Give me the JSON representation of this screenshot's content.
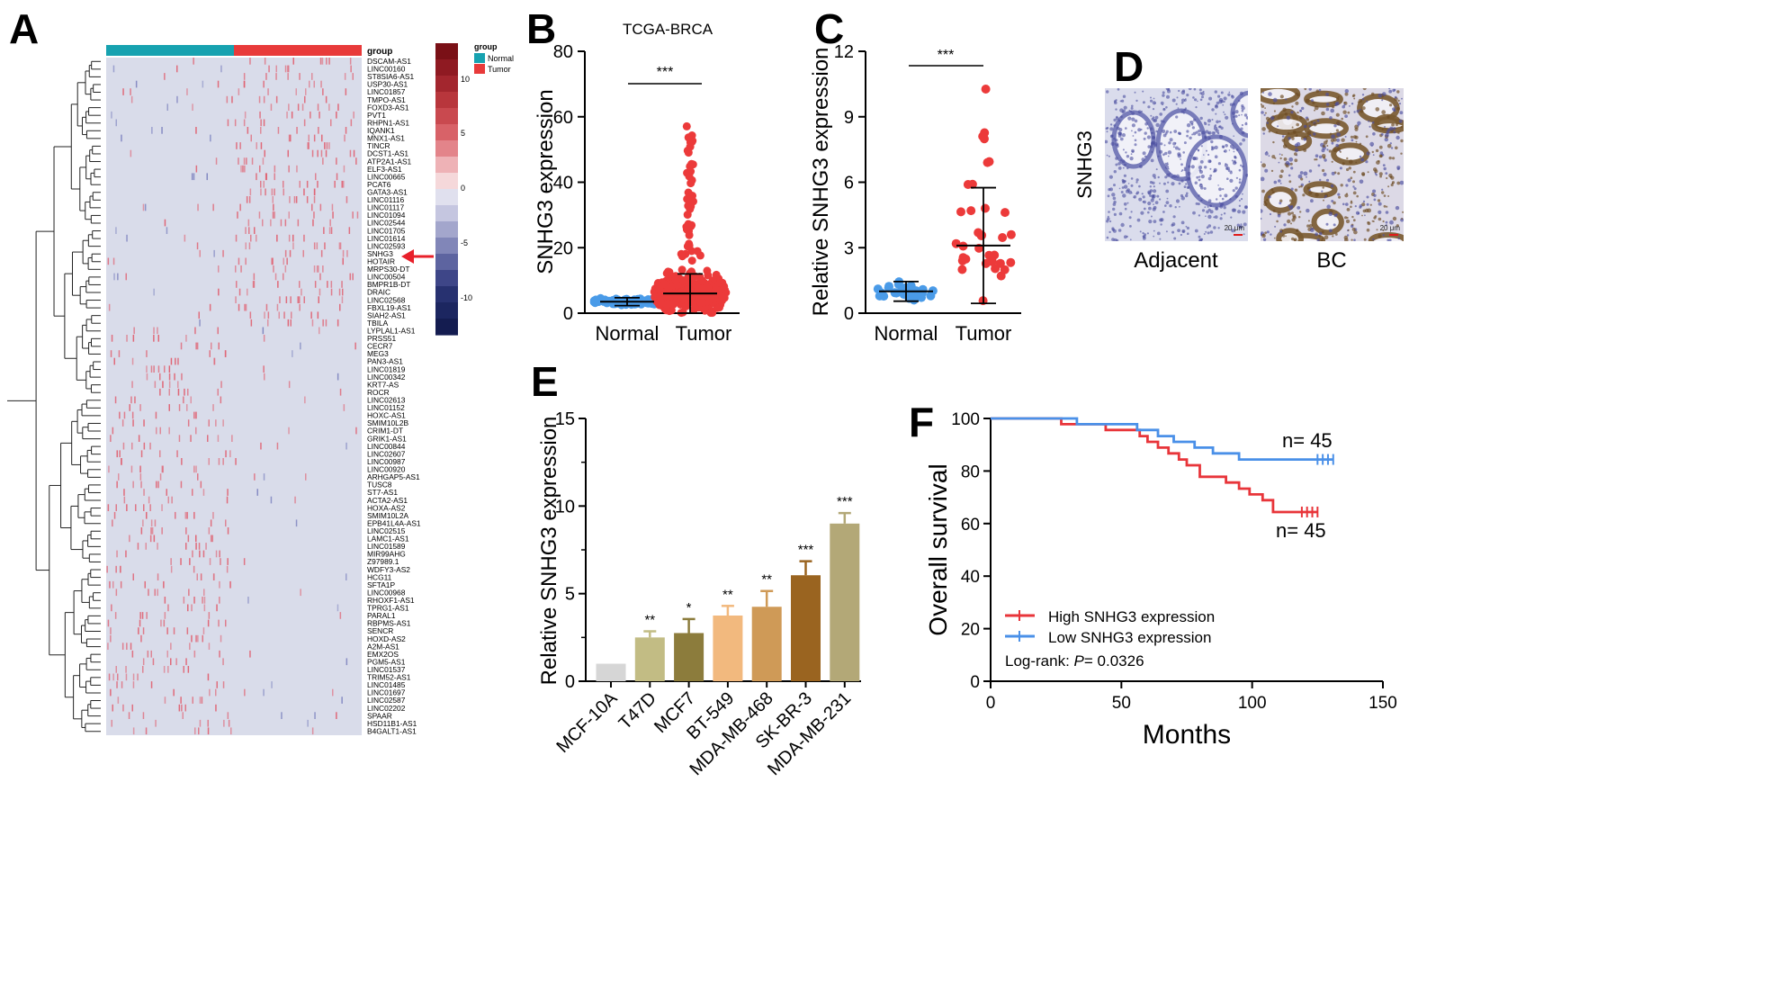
{
  "panel_letters": {
    "A": "A",
    "B": "B",
    "C": "C",
    "D": "D",
    "E": "E",
    "F": "F"
  },
  "colors": {
    "normal": "#17a2b0",
    "tumor": "#e83a3a",
    "heat_bg": "#d9dcea",
    "heat_pos": "#e06070",
    "heat_neg": "#7f85c0",
    "cell_lines": [
      "#d6d6d6",
      "#c2bc84",
      "#8c7c3c",
      "#f2b97e",
      "#cf9a57",
      "#9a6420",
      "#b3a877"
    ],
    "high": "#e8353a",
    "low": "#4a90e8"
  },
  "chart_data": [
    {
      "panel": "A",
      "type": "heatmap",
      "group_label": "group",
      "groups": [
        "Normal",
        "Tumor"
      ],
      "legend_title": "group",
      "legend_ticks": [
        "10",
        "5",
        "0",
        "-5",
        "-10"
      ],
      "highlight": "SNHG3",
      "genes": [
        "DSCAM-AS1",
        "LINC00160",
        "ST8SIA6-AS1",
        "USP30-AS1",
        "LINC01857",
        "TMPO-AS1",
        "FOXD3-AS1",
        "PVT1",
        "RHPN1-AS1",
        "IQANK1",
        "MNX1-AS1",
        "TINCR",
        "DCST1-AS1",
        "ATP2A1-AS1",
        "ELF3-AS1",
        "LINC00665",
        "PCAT6",
        "GATA3-AS1",
        "LINC01116",
        "LINC01117",
        "LINC01094",
        "LINC02544",
        "LINC01705",
        "LINC01614",
        "LINC02593",
        "SNHG3",
        "HOTAIR",
        "MRPS30-DT",
        "LINC00504",
        "BMPR1B-DT",
        "DRAIC",
        "LINC02568",
        "FBXL19-AS1",
        "SIAH2-AS1",
        "TBILA",
        "LYPLAL1-AS1",
        "PRSS51",
        "CECR7",
        "MEG3",
        "PAN3-AS1",
        "LINC01819",
        "LINC00342",
        "KRT7-AS",
        "ROCR",
        "LINC02613",
        "LINC01152",
        "HOXC-AS1",
        "SMIM10L2B",
        "CRIM1-DT",
        "GRIK1-AS1",
        "LINC00844",
        "LINC02607",
        "LINC00987",
        "LINC00920",
        "ARHGAP5-AS1",
        "TUSC8",
        "ST7-AS1",
        "ACTA2-AS1",
        "HOXA-AS2",
        "SMIM10L2A",
        "EPB41L4A-AS1",
        "LINC02515",
        "LAMC1-AS1",
        "LINC01589",
        "MIR99AHG",
        "Z97989.1",
        "WDFY3-AS2",
        "HCG11",
        "SFTA1P",
        "LINC00968",
        "RHOXF1-AS1",
        "TPRG1-AS1",
        "PARAL1",
        "RBPMS-AS1",
        "SENCR",
        "HOXD-AS2",
        "A2M-AS1",
        "EMX2OS",
        "PGM5-AS1",
        "LINC01537",
        "TRIM52-AS1",
        "LINC01485",
        "LINC01697",
        "LINC02587",
        "LINC02202",
        "SPAAR",
        "HSD11B1-AS1",
        "B4GALT1-AS1"
      ]
    },
    {
      "panel": "B",
      "type": "scatter",
      "title": "TCGA-BRCA",
      "ylabel": "SNHG3 expression",
      "categories": [
        "Normal",
        "Tumor"
      ],
      "ylim": [
        0,
        80
      ],
      "yticks": [
        "0",
        "20",
        "40",
        "60",
        "80"
      ],
      "mean": [
        3.5,
        6
      ],
      "sd": [
        1.2,
        6
      ],
      "max": [
        7,
        59
      ],
      "significance": "***"
    },
    {
      "panel": "C",
      "type": "scatter",
      "ylabel": "Relative SNHG3 expression",
      "categories": [
        "Normal",
        "Tumor"
      ],
      "ylim": [
        0,
        12
      ],
      "yticks": [
        "0",
        "3",
        "6",
        "9",
        "12"
      ],
      "mean": [
        1.0,
        3.1
      ],
      "sd": [
        0.45,
        2.65
      ],
      "max": [
        2.4,
        10.3
      ],
      "significance": "***"
    },
    {
      "panel": "D",
      "type": "image",
      "row_label": "SNHG3",
      "columns": [
        "Adjacent",
        "BC"
      ],
      "scale_label": "20 μm"
    },
    {
      "panel": "E",
      "type": "bar",
      "ylabel": "Relative SNHG3 expression",
      "categories": [
        "MCF-10A",
        "T47D",
        "MCF7",
        "BT-549",
        "MDA-MB-468",
        "SK-BR-3",
        "MDA-MB-231"
      ],
      "values": [
        1.0,
        2.5,
        2.75,
        3.75,
        4.25,
        6.05,
        9.0
      ],
      "errors": [
        0,
        0.35,
        0.8,
        0.55,
        0.9,
        0.8,
        0.6
      ],
      "significance": [
        "",
        "**",
        "*",
        "**",
        "**",
        "***",
        "***"
      ],
      "ylim": [
        0,
        15
      ],
      "yticks": [
        "0",
        "5",
        "10",
        "15"
      ]
    },
    {
      "panel": "F",
      "type": "line",
      "xlabel": "Months",
      "ylabel": "Overall survival",
      "xlim": [
        0,
        150
      ],
      "ylim": [
        0,
        100
      ],
      "xticks": [
        "0",
        "50",
        "100",
        "150"
      ],
      "yticks": [
        "0",
        "20",
        "40",
        "60",
        "80",
        "100"
      ],
      "series": [
        {
          "name": "High SNHG3 expression",
          "x": [
            0,
            27,
            27,
            44,
            44,
            57,
            57,
            60,
            60,
            64,
            64,
            68,
            68,
            72,
            72,
            75,
            75,
            80,
            80,
            90,
            90,
            95,
            95,
            99,
            99,
            104,
            104,
            108,
            108,
            125
          ],
          "y": [
            100,
            100,
            97.8,
            97.8,
            95.6,
            95.6,
            93.3,
            93.3,
            91.1,
            91.1,
            88.9,
            88.9,
            86.7,
            86.7,
            84.4,
            84.4,
            82.2,
            82.2,
            77.8,
            77.8,
            75.6,
            75.6,
            73.3,
            73.3,
            71.1,
            71.1,
            68.9,
            68.9,
            64.4,
            64.4
          ],
          "n_label": "n= 45"
        },
        {
          "name": "Low SNHG3 expression",
          "x": [
            0,
            33,
            33,
            56,
            56,
            64,
            64,
            70,
            70,
            78,
            78,
            85,
            85,
            95,
            95,
            131
          ],
          "y": [
            100,
            100,
            97.8,
            97.8,
            95.6,
            95.6,
            93.3,
            93.3,
            91.1,
            91.1,
            88.9,
            88.9,
            86.7,
            86.7,
            84.4,
            84.4
          ],
          "n_label": "n= 45"
        }
      ],
      "logrank": "Log-rank: ",
      "p_label": "P",
      "p_value": "= 0.0326"
    }
  ]
}
